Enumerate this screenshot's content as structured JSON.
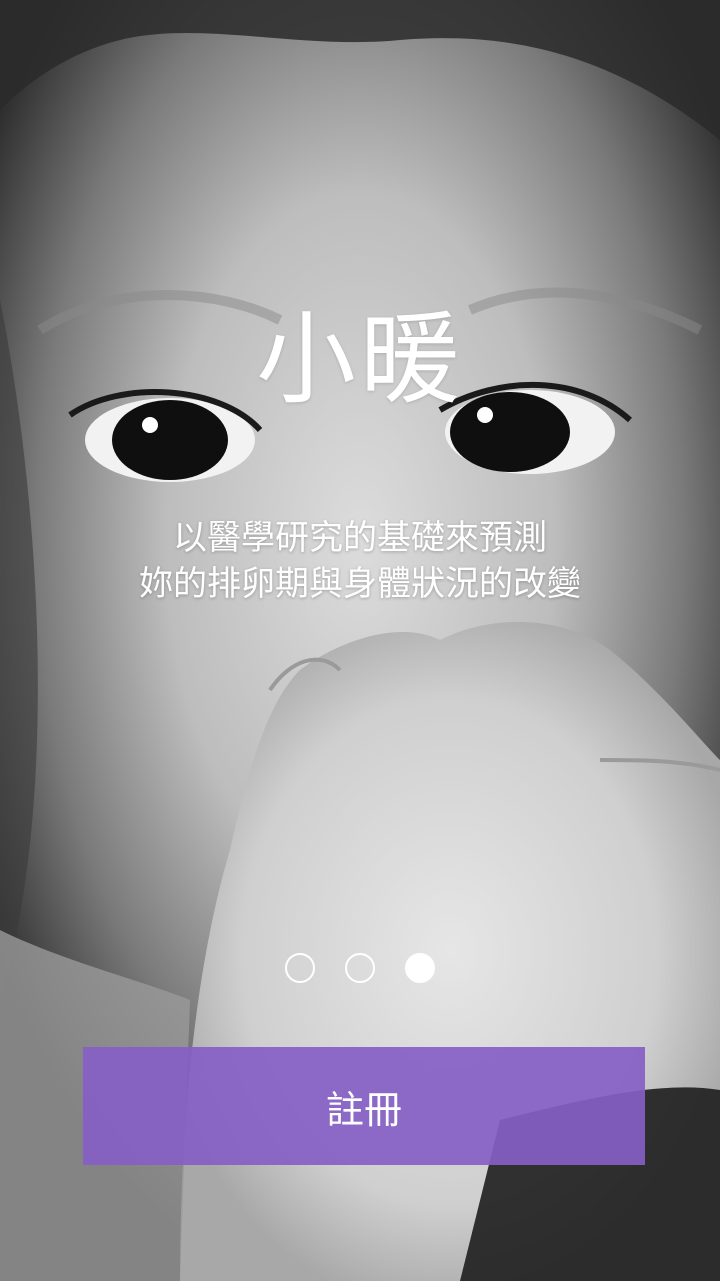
{
  "app": {
    "title": "小暖"
  },
  "onboarding": {
    "tagline_lines": [
      "以醫學研究的基礎來預測",
      "妳的排卵期與身體狀況的改變"
    ],
    "pager": {
      "total_pages": 3,
      "current_page": 3
    },
    "register_label": "註冊"
  },
  "colors": {
    "accent": "#8660c4",
    "text": "#ffffff"
  },
  "background_image": "grayscale photo of a baby's face with hand near mouth"
}
